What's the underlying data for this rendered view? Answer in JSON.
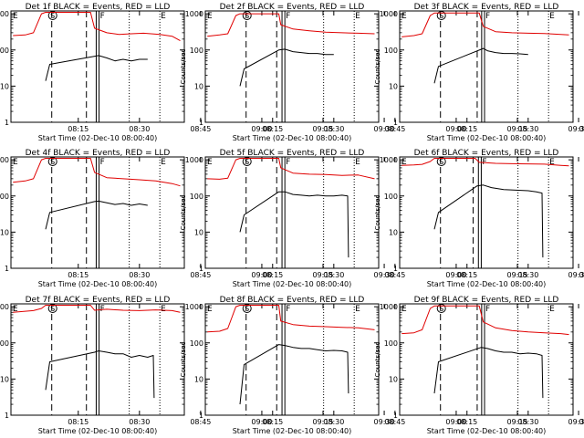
{
  "figure": {
    "title_template": "Det {d} BLACK = Events, RED = LLD",
    "ylabel": "Counts/sec",
    "xlabel": "Start Time (02-Dec-10 08:00:40)",
    "xticks": [
      "08:15",
      "08:30",
      "08:45",
      "09:00",
      "09:15",
      "09:30"
    ],
    "yticks": [
      "1",
      "10",
      "100",
      "1000"
    ],
    "markers": {
      "E": "E",
      "S": "S",
      "F": "F"
    },
    "colors": {
      "events": "#000000",
      "lld": "#e00000"
    }
  },
  "chart_data": [
    {
      "type": "line",
      "title": "Det 1f BLACK = Events, RED = LLD",
      "xlabel": "Start Time (02-Dec-10 08:00:40)",
      "ylabel": "Counts/sec",
      "yscale": "log",
      "ylim": [
        1,
        1200
      ],
      "xlim_minutes_after_08_00": [
        -1.5,
        41
      ],
      "events": [
        {
          "x": 7,
          "y": 14
        },
        {
          "x": 8,
          "y": 40
        },
        {
          "x": 20,
          "y": 70
        },
        {
          "x": 22,
          "y": 60
        },
        {
          "x": 24,
          "y": 50
        },
        {
          "x": 26,
          "y": 55
        },
        {
          "x": 28,
          "y": 50
        },
        {
          "x": 30,
          "y": 55
        },
        {
          "x": 32,
          "y": 55
        }
      ],
      "lld": [
        {
          "x": -1,
          "y": 250
        },
        {
          "x": 2,
          "y": 260
        },
        {
          "x": 4,
          "y": 300
        },
        {
          "x": 6,
          "y": 1000
        },
        {
          "x": 7,
          "y": 1100
        },
        {
          "x": 18,
          "y": 1100
        },
        {
          "x": 19,
          "y": 400
        },
        {
          "x": 22,
          "y": 300
        },
        {
          "x": 25,
          "y": 270
        },
        {
          "x": 28,
          "y": 280
        },
        {
          "x": 31,
          "y": 290
        },
        {
          "x": 35,
          "y": 270
        },
        {
          "x": 38,
          "y": 240
        },
        {
          "x": 40,
          "y": 180
        }
      ],
      "dashed_lines": [
        8.5,
        17
      ],
      "double_lines": [
        19.4,
        20.1
      ],
      "dotted_lines": [
        27.5,
        35
      ]
    },
    {
      "type": "line",
      "title": "Det 2f BLACK = Events, RED = LLD",
      "xlabel": "Start Time (02-Dec-10 08:00:40)",
      "ylabel": "Counts/sec",
      "yscale": "log",
      "ylim": [
        1,
        1200
      ],
      "xlim_minutes_after_08_00": [
        -1.5,
        41
      ],
      "events": [
        {
          "x": 7,
          "y": 10
        },
        {
          "x": 8,
          "y": 30
        },
        {
          "x": 16.5,
          "y": 100
        },
        {
          "x": 18,
          "y": 105
        },
        {
          "x": 20,
          "y": 90
        },
        {
          "x": 22,
          "y": 85
        },
        {
          "x": 24,
          "y": 80
        },
        {
          "x": 26,
          "y": 80
        },
        {
          "x": 28,
          "y": 75
        },
        {
          "x": 30,
          "y": 75
        }
      ],
      "lld": [
        {
          "x": -1,
          "y": 240
        },
        {
          "x": 2,
          "y": 260
        },
        {
          "x": 4,
          "y": 280
        },
        {
          "x": 6,
          "y": 900
        },
        {
          "x": 7,
          "y": 1000
        },
        {
          "x": 16.5,
          "y": 1000
        },
        {
          "x": 17,
          "y": 500
        },
        {
          "x": 20,
          "y": 380
        },
        {
          "x": 24,
          "y": 340
        },
        {
          "x": 28,
          "y": 310
        },
        {
          "x": 32,
          "y": 300
        },
        {
          "x": 36,
          "y": 290
        },
        {
          "x": 40,
          "y": 280
        }
      ],
      "dashed_lines": [
        8.5,
        16
      ],
      "double_lines": [
        17.3,
        18.0
      ],
      "dotted_lines": [
        27.5,
        35
      ]
    },
    {
      "type": "line",
      "title": "Det 3f BLACK = Events, RED = LLD",
      "xlabel": "Start Time (02-Dec-10 08:00:40)",
      "ylabel": "Counts/sec",
      "yscale": "log",
      "ylim": [
        1,
        1200
      ],
      "xlim_minutes_after_08_00": [
        -1.5,
        41
      ],
      "events": [
        {
          "x": 7,
          "y": 12
        },
        {
          "x": 8,
          "y": 35
        },
        {
          "x": 19,
          "y": 110
        },
        {
          "x": 20,
          "y": 95
        },
        {
          "x": 22,
          "y": 85
        },
        {
          "x": 24,
          "y": 80
        },
        {
          "x": 26,
          "y": 80
        },
        {
          "x": 28,
          "y": 78
        },
        {
          "x": 30,
          "y": 75
        }
      ],
      "lld": [
        {
          "x": -1,
          "y": 230
        },
        {
          "x": 2,
          "y": 250
        },
        {
          "x": 4,
          "y": 280
        },
        {
          "x": 6,
          "y": 900
        },
        {
          "x": 7,
          "y": 1050
        },
        {
          "x": 18,
          "y": 1050
        },
        {
          "x": 19,
          "y": 450
        },
        {
          "x": 22,
          "y": 320
        },
        {
          "x": 26,
          "y": 300
        },
        {
          "x": 30,
          "y": 290
        },
        {
          "x": 34,
          "y": 285
        },
        {
          "x": 38,
          "y": 270
        },
        {
          "x": 40,
          "y": 260
        }
      ],
      "dashed_lines": [
        8.5,
        17.5
      ],
      "double_lines": [
        18.6,
        19.3
      ],
      "dotted_lines": [
        27.5,
        35
      ]
    },
    {
      "type": "line",
      "title": "Det 4f BLACK = Events, RED = LLD",
      "xlabel": "Start Time (02-Dec-10 08:00:40)",
      "ylabel": "Counts/sec",
      "yscale": "log",
      "ylim": [
        1,
        1200
      ],
      "xlim_minutes_after_08_00": [
        -1.5,
        41
      ],
      "events": [
        {
          "x": 7,
          "y": 12
        },
        {
          "x": 8,
          "y": 35
        },
        {
          "x": 19,
          "y": 70
        },
        {
          "x": 20,
          "y": 72
        },
        {
          "x": 22,
          "y": 65
        },
        {
          "x": 24,
          "y": 58
        },
        {
          "x": 26,
          "y": 62
        },
        {
          "x": 28,
          "y": 55
        },
        {
          "x": 30,
          "y": 60
        },
        {
          "x": 32,
          "y": 55
        }
      ],
      "lld": [
        {
          "x": -1,
          "y": 240
        },
        {
          "x": 2,
          "y": 260
        },
        {
          "x": 4,
          "y": 300
        },
        {
          "x": 6,
          "y": 1000
        },
        {
          "x": 7,
          "y": 1100
        },
        {
          "x": 18,
          "y": 1100
        },
        {
          "x": 19,
          "y": 450
        },
        {
          "x": 22,
          "y": 320
        },
        {
          "x": 26,
          "y": 300
        },
        {
          "x": 30,
          "y": 280
        },
        {
          "x": 34,
          "y": 260
        },
        {
          "x": 38,
          "y": 220
        },
        {
          "x": 40,
          "y": 190
        }
      ],
      "dashed_lines": [
        8.5,
        17
      ],
      "double_lines": [
        19.4,
        20.1
      ],
      "dotted_lines": [
        27.5,
        35
      ]
    },
    {
      "type": "line",
      "title": "Det 5f BLACK = Events, RED = LLD",
      "xlabel": "Start Time (02-Dec-10 08:00:40)",
      "ylabel": "Counts/sec",
      "yscale": "log",
      "ylim": [
        1,
        1200
      ],
      "xlim_minutes_after_08_00": [
        -1.5,
        41
      ],
      "events": [
        {
          "x": 7,
          "y": 10
        },
        {
          "x": 8,
          "y": 30
        },
        {
          "x": 16.5,
          "y": 130
        },
        {
          "x": 18,
          "y": 130
        },
        {
          "x": 20,
          "y": 110
        },
        {
          "x": 22,
          "y": 105
        },
        {
          "x": 24,
          "y": 100
        },
        {
          "x": 26,
          "y": 105
        },
        {
          "x": 28,
          "y": 100
        },
        {
          "x": 30,
          "y": 100
        },
        {
          "x": 32,
          "y": 105
        },
        {
          "x": 33.4,
          "y": 100
        },
        {
          "x": 33.6,
          "y": 2
        }
      ],
      "lld": [
        {
          "x": -1,
          "y": 300
        },
        {
          "x": 2,
          "y": 290
        },
        {
          "x": 4,
          "y": 310
        },
        {
          "x": 6,
          "y": 1000
        },
        {
          "x": 7,
          "y": 1100
        },
        {
          "x": 16.5,
          "y": 1100
        },
        {
          "x": 17,
          "y": 600
        },
        {
          "x": 20,
          "y": 430
        },
        {
          "x": 24,
          "y": 400
        },
        {
          "x": 28,
          "y": 390
        },
        {
          "x": 32,
          "y": 370
        },
        {
          "x": 36,
          "y": 380
        },
        {
          "x": 40,
          "y": 300
        }
      ],
      "dashed_lines": [
        8.5,
        16
      ],
      "double_lines": [
        17.3,
        18.0
      ],
      "dotted_lines": [
        27.5,
        35
      ]
    },
    {
      "type": "line",
      "title": "Det 6f BLACK = Events, RED = LLD",
      "xlabel": "Start Time (02-Dec-10 08:00:40)",
      "ylabel": "Counts/sec",
      "yscale": "log",
      "ylim": [
        1,
        1200
      ],
      "xlim_minutes_after_08_00": [
        -1.5,
        41
      ],
      "events": [
        {
          "x": 7,
          "y": 12
        },
        {
          "x": 8,
          "y": 35
        },
        {
          "x": 17.5,
          "y": 190
        },
        {
          "x": 19,
          "y": 200
        },
        {
          "x": 21,
          "y": 170
        },
        {
          "x": 24,
          "y": 150
        },
        {
          "x": 27,
          "y": 145
        },
        {
          "x": 30,
          "y": 140
        },
        {
          "x": 32,
          "y": 130
        },
        {
          "x": 33.4,
          "y": 120
        },
        {
          "x": 33.6,
          "y": 2
        }
      ],
      "lld": [
        {
          "x": -1,
          "y": 700
        },
        {
          "x": 2,
          "y": 720
        },
        {
          "x": 4,
          "y": 750
        },
        {
          "x": 6,
          "y": 900
        },
        {
          "x": 7,
          "y": 1100
        },
        {
          "x": 17,
          "y": 1100
        },
        {
          "x": 18,
          "y": 850
        },
        {
          "x": 22,
          "y": 800
        },
        {
          "x": 26,
          "y": 780
        },
        {
          "x": 30,
          "y": 770
        },
        {
          "x": 34,
          "y": 760
        },
        {
          "x": 38,
          "y": 700
        },
        {
          "x": 40,
          "y": 680
        }
      ],
      "dashed_lines": [
        8.5,
        16.5
      ],
      "double_lines": [
        17.8,
        18.5
      ],
      "dotted_lines": [
        27.5,
        35
      ]
    },
    {
      "type": "line",
      "title": "Det 7f BLACK = Events, RED = LLD",
      "xlabel": "Start Time (02-Dec-10 08:00:40)",
      "ylabel": "Counts/sec",
      "yscale": "log",
      "ylim": [
        1,
        1200
      ],
      "xlim_minutes_after_08_00": [
        -1.5,
        41
      ],
      "events": [
        {
          "x": 7,
          "y": 5
        },
        {
          "x": 8,
          "y": 30
        },
        {
          "x": 19,
          "y": 55
        },
        {
          "x": 20,
          "y": 60
        },
        {
          "x": 22,
          "y": 55
        },
        {
          "x": 24,
          "y": 50
        },
        {
          "x": 26,
          "y": 50
        },
        {
          "x": 28,
          "y": 40
        },
        {
          "x": 30,
          "y": 45
        },
        {
          "x": 32,
          "y": 40
        },
        {
          "x": 33.4,
          "y": 45
        },
        {
          "x": 33.6,
          "y": 3
        }
      ],
      "lld": [
        {
          "x": -1,
          "y": 700
        },
        {
          "x": 2,
          "y": 750
        },
        {
          "x": 4,
          "y": 780
        },
        {
          "x": 6,
          "y": 900
        },
        {
          "x": 7,
          "y": 1100
        },
        {
          "x": 18,
          "y": 1100
        },
        {
          "x": 19,
          "y": 800
        },
        {
          "x": 22,
          "y": 850
        },
        {
          "x": 26,
          "y": 800
        },
        {
          "x": 30,
          "y": 780
        },
        {
          "x": 34,
          "y": 820
        },
        {
          "x": 38,
          "y": 780
        },
        {
          "x": 40,
          "y": 700
        }
      ],
      "dashed_lines": [
        8.5,
        17
      ],
      "double_lines": [
        19.4,
        20.1
      ],
      "dotted_lines": [
        27.5,
        35
      ]
    },
    {
      "type": "line",
      "title": "Det 8f BLACK = Events, RED = LLD",
      "xlabel": "Start Time (02-Dec-10 08:00:40)",
      "ylabel": "Counts/sec",
      "yscale": "log",
      "ylim": [
        1,
        1200
      ],
      "xlim_minutes_after_08_00": [
        -1.5,
        41
      ],
      "events": [
        {
          "x": 7,
          "y": 2
        },
        {
          "x": 8,
          "y": 25
        },
        {
          "x": 16.5,
          "y": 90
        },
        {
          "x": 18,
          "y": 85
        },
        {
          "x": 20,
          "y": 75
        },
        {
          "x": 22,
          "y": 70
        },
        {
          "x": 24,
          "y": 70
        },
        {
          "x": 26,
          "y": 65
        },
        {
          "x": 28,
          "y": 60
        },
        {
          "x": 30,
          "y": 62
        },
        {
          "x": 32,
          "y": 60
        },
        {
          "x": 33.4,
          "y": 55
        },
        {
          "x": 33.6,
          "y": 4
        }
      ],
      "lld": [
        {
          "x": -1,
          "y": 200
        },
        {
          "x": 2,
          "y": 210
        },
        {
          "x": 4,
          "y": 250
        },
        {
          "x": 6,
          "y": 1000
        },
        {
          "x": 7,
          "y": 1100
        },
        {
          "x": 16.5,
          "y": 1100
        },
        {
          "x": 17,
          "y": 400
        },
        {
          "x": 20,
          "y": 320
        },
        {
          "x": 24,
          "y": 290
        },
        {
          "x": 28,
          "y": 280
        },
        {
          "x": 32,
          "y": 270
        },
        {
          "x": 36,
          "y": 260
        },
        {
          "x": 40,
          "y": 230
        }
      ],
      "dashed_lines": [
        8.5,
        16
      ],
      "double_lines": [
        17.3,
        18.0
      ],
      "dotted_lines": [
        27.5,
        35
      ]
    },
    {
      "type": "line",
      "title": "Det 9f BLACK = Events, RED = LLD",
      "xlabel": "Start Time (02-Dec-10 08:00:40)",
      "ylabel": "Counts/sec",
      "yscale": "log",
      "ylim": [
        1,
        1200
      ],
      "xlim_minutes_after_08_00": [
        -1.5,
        41
      ],
      "events": [
        {
          "x": 7,
          "y": 4
        },
        {
          "x": 8,
          "y": 30
        },
        {
          "x": 18.5,
          "y": 75
        },
        {
          "x": 20,
          "y": 70
        },
        {
          "x": 22,
          "y": 60
        },
        {
          "x": 24,
          "y": 55
        },
        {
          "x": 26,
          "y": 55
        },
        {
          "x": 28,
          "y": 50
        },
        {
          "x": 30,
          "y": 52
        },
        {
          "x": 32,
          "y": 50
        },
        {
          "x": 33.4,
          "y": 45
        },
        {
          "x": 33.6,
          "y": 3
        }
      ],
      "lld": [
        {
          "x": -1,
          "y": 180
        },
        {
          "x": 2,
          "y": 190
        },
        {
          "x": 4,
          "y": 230
        },
        {
          "x": 6,
          "y": 900
        },
        {
          "x": 7,
          "y": 1050
        },
        {
          "x": 18,
          "y": 1050
        },
        {
          "x": 19,
          "y": 380
        },
        {
          "x": 22,
          "y": 260
        },
        {
          "x": 26,
          "y": 220
        },
        {
          "x": 30,
          "y": 200
        },
        {
          "x": 34,
          "y": 190
        },
        {
          "x": 38,
          "y": 180
        },
        {
          "x": 40,
          "y": 170
        }
      ],
      "dashed_lines": [
        8.5,
        17.5
      ],
      "double_lines": [
        18.6,
        19.3
      ],
      "dotted_lines": [
        27.5,
        35
      ]
    }
  ]
}
